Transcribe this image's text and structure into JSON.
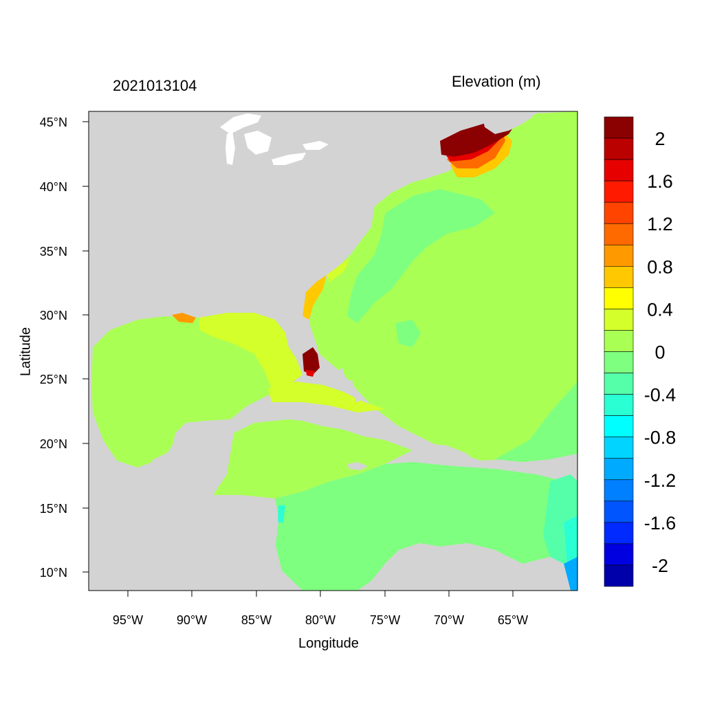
{
  "title_left": "2021013104",
  "title_right": "Elevation (m)",
  "x_axis_label": "Longitude",
  "y_axis_label": "Latitude",
  "lon_ticks": [
    "95°W",
    "90°W",
    "85°W",
    "80°W",
    "75°W",
    "70°W",
    "65°W"
  ],
  "lat_ticks": [
    "45°N",
    "40°N",
    "35°N",
    "30°N",
    "25°N",
    "20°N",
    "15°N",
    "10°N"
  ],
  "colorbar": {
    "labels": [
      "2",
      "1.6",
      "1.2",
      "0.8",
      "0.4",
      "0",
      "-0.4",
      "-0.8",
      "-1.2",
      "-1.6",
      "-2"
    ],
    "colors": [
      "#8b0000",
      "#bb0000",
      "#e60000",
      "#ff1a00",
      "#ff4400",
      "#ff6a00",
      "#ff9900",
      "#ffc800",
      "#ffff00",
      "#d4ff2a",
      "#aaff55",
      "#7fff7f",
      "#55ffaa",
      "#2affd4",
      "#00ffff",
      "#00d4ff",
      "#00aaff",
      "#007fff",
      "#0055ff",
      "#002aff",
      "#0000e0",
      "#0000aa"
    ]
  },
  "map_colors": {
    "land": "#d3d3d3",
    "lakes": "#ffffff",
    "ocean_base": "#aaff55",
    "ocean_low": "#7fff7f",
    "surge_high": "#8b0000"
  }
}
